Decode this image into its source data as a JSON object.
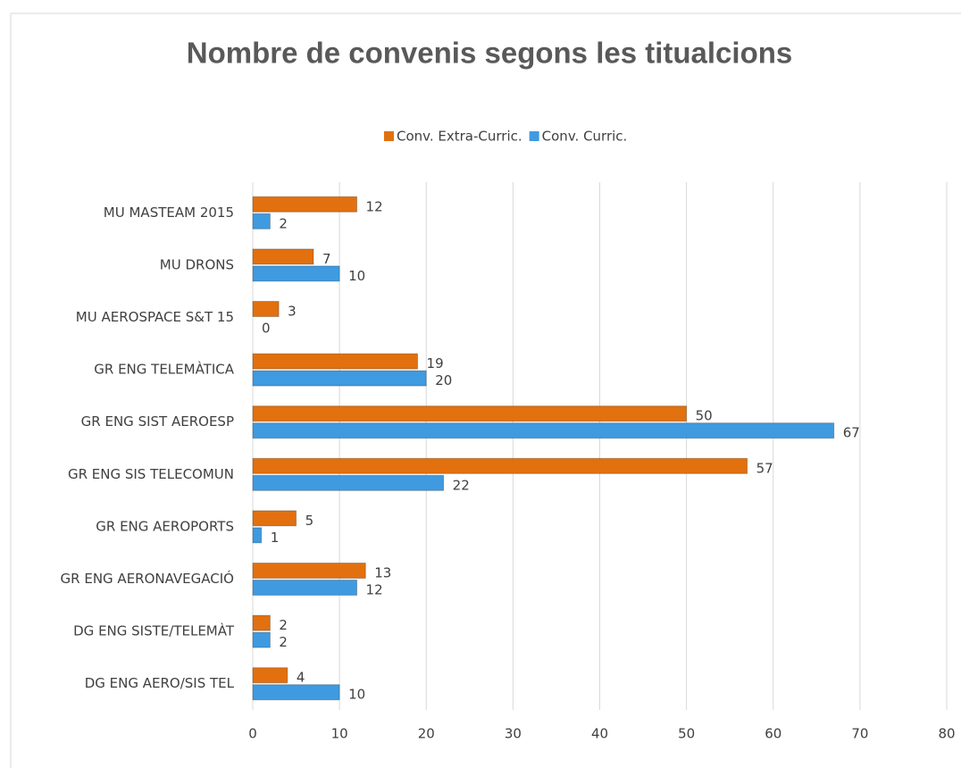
{
  "chart_data": {
    "type": "bar",
    "orientation": "horizontal",
    "title": "Nombre de convenis segons les titualcions",
    "categories": [
      "MU MASTEAM 2015",
      "MU DRONS",
      "MU AEROSPACE S&T 15",
      "GR ENG TELEMÀTICA",
      "GR ENG SIST AEROESP",
      "GR ENG SIS TELECOMUN",
      "GR ENG AEROPORTS",
      "GR ENG AERONAVEGACIÓ",
      "DG ENG SISTE/TELEMÀT",
      "DG ENG AERO/SIS TEL"
    ],
    "series": [
      {
        "name": "Conv. Extra-Curric.",
        "color": "#e2700f",
        "values": [
          12,
          7,
          3,
          19,
          50,
          57,
          5,
          13,
          2,
          4
        ]
      },
      {
        "name": "Conv. Curric.",
        "color": "#3f9ae0",
        "values": [
          2,
          10,
          0,
          20,
          67,
          22,
          1,
          12,
          2,
          10
        ]
      }
    ],
    "xlim": [
      0,
      80
    ],
    "xticks": [
      0,
      10,
      20,
      30,
      40,
      50,
      60,
      70,
      80
    ],
    "grid": true,
    "legend": "top"
  }
}
